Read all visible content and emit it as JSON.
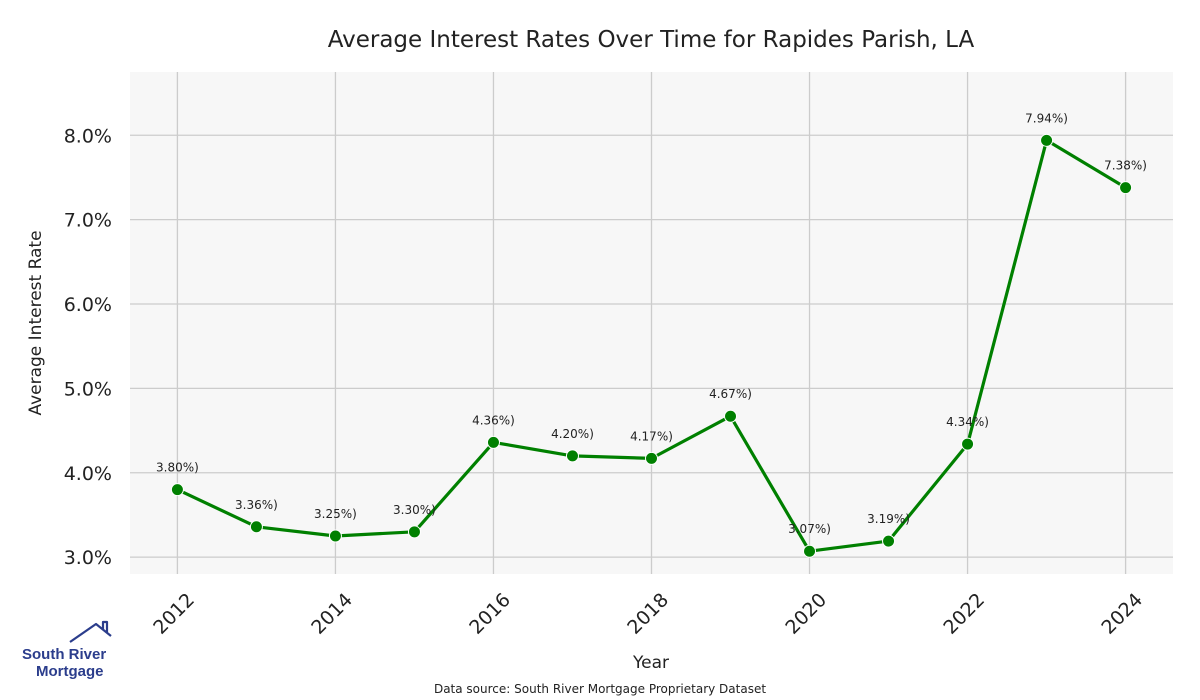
{
  "chart_data": {
    "type": "line",
    "title": "Average Interest Rates Over Time for Rapides Parish, LA",
    "xlabel": "Year",
    "ylabel": "Average Interest Rate",
    "x": [
      2012,
      2013,
      2014,
      2015,
      2016,
      2017,
      2018,
      2019,
      2020,
      2021,
      2022,
      2023,
      2024
    ],
    "values": [
      3.8,
      3.36,
      3.25,
      3.3,
      4.36,
      4.2,
      4.17,
      4.67,
      3.07,
      3.19,
      4.34,
      7.94,
      7.38
    ],
    "data_labels": [
      "3.80%)",
      "3.36%)",
      "3.25%)",
      "3.30%)",
      "4.36%)",
      "4.20%)",
      "4.17%)",
      "4.67%)",
      "3.07%)",
      "3.19%)",
      "4.34%)",
      "7.94%)",
      "7.38%)"
    ],
    "x_ticks": [
      2012,
      2014,
      2016,
      2018,
      2020,
      2022,
      2024
    ],
    "x_tick_labels": [
      "2012",
      "2014",
      "2016",
      "2018",
      "2020",
      "2022",
      "2024"
    ],
    "y_ticks": [
      3.0,
      4.0,
      5.0,
      6.0,
      7.0,
      8.0
    ],
    "y_tick_labels": [
      "3.0%",
      "4.0%",
      "5.0%",
      "6.0%",
      "7.0%",
      "8.0%"
    ],
    "xlim": [
      2011.4,
      2024.6
    ],
    "ylim": [
      2.8,
      8.75
    ],
    "grid": true,
    "colors": {
      "line": "#008000",
      "background": "#f7f7f7",
      "grid": "#cccccc"
    }
  },
  "source_text": "Data source: South River Mortgage Proprietary Dataset",
  "logo": {
    "line1": "South River",
    "line2": "Mortgage",
    "color": "#2b3d8c"
  }
}
